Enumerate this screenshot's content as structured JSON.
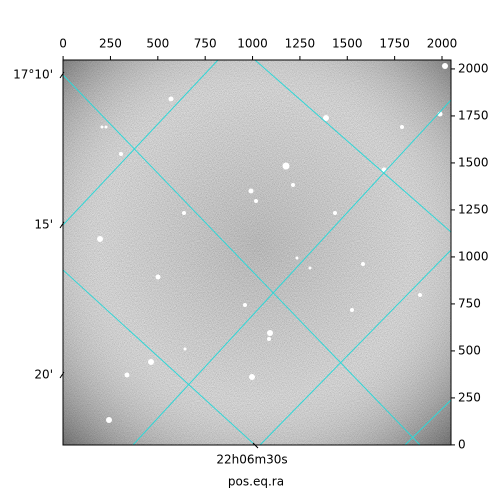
{
  "chart_data": {
    "type": "image",
    "xlabel": "pos.eq.ra",
    "xlim": [
      -0.5,
      2047.5
    ],
    "xticks": [
      0,
      250,
      500,
      750,
      1000,
      1250,
      1500,
      1750,
      2000
    ],
    "ylim": [
      -0.5,
      2047.5
    ],
    "yticks": [
      0,
      250,
      500,
      750,
      1000,
      1250,
      1500,
      1750,
      2000
    ],
    "dec_tick_labels": [
      "17°10'",
      "15'",
      "20'"
    ],
    "ra_tick_labels": [
      "22h06m30s"
    ],
    "grid_color": "#2fd6d6"
  }
}
